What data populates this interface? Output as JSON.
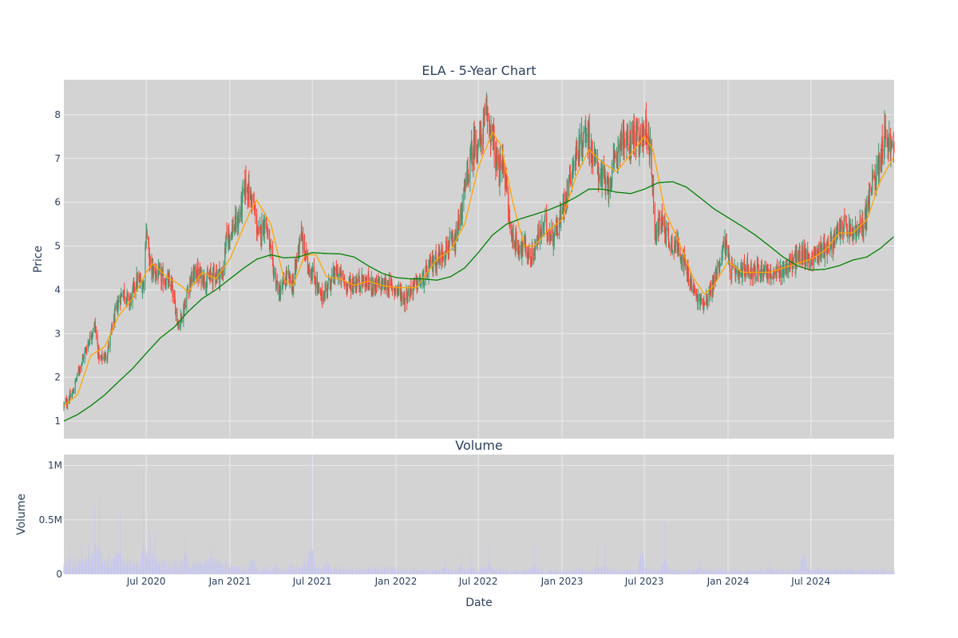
{
  "colors": {
    "background": "#d3d3d3",
    "paper": "#ffffff",
    "grid": "#ebebeb",
    "increasing": "#3d9970",
    "decreasing": "#ff4136",
    "ma_short": "#ffa500",
    "ma_long": "#008000",
    "volume": "#c7c7ee",
    "text": "#2a3f5f"
  },
  "chart_data": [
    {
      "type": "candlestick",
      "title": "ELA - 5-Year Chart",
      "xlabel": "",
      "ylabel": "Price",
      "xlim": [
        "2020-01-02",
        "2024-12-31"
      ],
      "ylim": [
        0.6,
        8.8
      ],
      "y_ticks": [
        1,
        2,
        3,
        4,
        5,
        6,
        7,
        8
      ],
      "grid": true,
      "legend": "none",
      "price_anchors": [
        [
          "2020-01-02",
          1.35
        ],
        [
          "2020-01-20",
          1.6
        ],
        [
          "2020-02-05",
          2.2
        ],
        [
          "2020-02-25",
          2.8
        ],
        [
          "2020-03-10",
          3.2
        ],
        [
          "2020-03-20",
          2.4
        ],
        [
          "2020-04-05",
          2.5
        ],
        [
          "2020-04-25",
          3.5
        ],
        [
          "2020-05-10",
          4.0
        ],
        [
          "2020-05-25",
          3.7
        ],
        [
          "2020-06-10",
          4.2
        ],
        [
          "2020-06-25",
          4.1
        ],
        [
          "2020-07-01",
          5.4
        ],
        [
          "2020-07-10",
          4.5
        ],
        [
          "2020-08-01",
          4.3
        ],
        [
          "2020-08-25",
          4.1
        ],
        [
          "2020-09-10",
          3.2
        ],
        [
          "2020-09-20",
          3.5
        ],
        [
          "2020-10-05",
          4.2
        ],
        [
          "2020-10-20",
          4.4
        ],
        [
          "2020-11-10",
          4.2
        ],
        [
          "2020-12-01",
          4.4
        ],
        [
          "2020-12-15",
          4.3
        ],
        [
          "2020-12-25",
          5.2
        ],
        [
          "2021-01-20",
          5.6
        ],
        [
          "2021-02-05",
          6.4
        ],
        [
          "2021-02-20",
          6.0
        ],
        [
          "2021-03-05",
          5.2
        ],
        [
          "2021-03-20",
          5.6
        ],
        [
          "2021-04-05",
          4.5
        ],
        [
          "2021-04-20",
          3.9
        ],
        [
          "2021-05-05",
          4.3
        ],
        [
          "2021-05-20",
          4.1
        ],
        [
          "2021-06-05",
          5.3
        ],
        [
          "2021-06-20",
          4.6
        ],
        [
          "2021-07-05",
          4.3
        ],
        [
          "2021-07-20",
          3.8
        ],
        [
          "2021-08-10",
          4.2
        ],
        [
          "2021-08-25",
          4.4
        ],
        [
          "2021-09-15",
          4.1
        ],
        [
          "2021-10-15",
          4.2
        ],
        [
          "2021-11-15",
          4.1
        ],
        [
          "2021-12-15",
          4.1
        ],
        [
          "2022-01-05",
          4.0
        ],
        [
          "2022-01-20",
          3.8
        ],
        [
          "2022-02-10",
          4.1
        ],
        [
          "2022-03-01",
          4.2
        ],
        [
          "2022-03-20",
          4.6
        ],
        [
          "2022-04-10",
          4.8
        ],
        [
          "2022-04-25",
          5.0
        ],
        [
          "2022-05-10",
          5.0
        ],
        [
          "2022-05-25",
          5.8
        ],
        [
          "2022-06-05",
          6.5
        ],
        [
          "2022-06-20",
          7.3
        ],
        [
          "2022-07-05",
          7.4
        ],
        [
          "2022-07-20",
          8.0
        ],
        [
          "2022-08-01",
          7.5
        ],
        [
          "2022-08-15",
          6.6
        ],
        [
          "2022-08-25",
          7.0
        ],
        [
          "2022-09-10",
          5.3
        ],
        [
          "2022-09-25",
          5.0
        ],
        [
          "2022-10-10",
          5.0
        ],
        [
          "2022-10-25",
          4.7
        ],
        [
          "2022-11-10",
          5.2
        ],
        [
          "2022-11-25",
          5.5
        ],
        [
          "2022-12-10",
          5.2
        ],
        [
          "2022-12-25",
          5.5
        ],
        [
          "2023-01-10",
          6.2
        ],
        [
          "2023-01-25",
          6.9
        ],
        [
          "2023-02-10",
          7.3
        ],
        [
          "2023-02-25",
          7.7
        ],
        [
          "2023-03-10",
          7.0
        ],
        [
          "2023-03-25",
          6.7
        ],
        [
          "2023-04-10",
          6.3
        ],
        [
          "2023-04-25",
          6.8
        ],
        [
          "2023-05-10",
          7.5
        ],
        [
          "2023-05-25",
          7.3
        ],
        [
          "2023-06-10",
          7.6
        ],
        [
          "2023-06-20",
          7.2
        ],
        [
          "2023-07-01",
          7.8
        ],
        [
          "2023-07-15",
          7.2
        ],
        [
          "2023-07-25",
          5.3
        ],
        [
          "2023-08-10",
          5.6
        ],
        [
          "2023-08-25",
          5.1
        ],
        [
          "2023-09-15",
          5.0
        ],
        [
          "2023-10-05",
          4.3
        ],
        [
          "2023-10-25",
          3.8
        ],
        [
          "2023-11-05",
          3.7
        ],
        [
          "2023-11-15",
          3.8
        ],
        [
          "2023-11-25",
          4.0
        ],
        [
          "2023-12-10",
          4.5
        ],
        [
          "2023-12-25",
          5.1
        ],
        [
          "2024-01-05",
          4.5
        ],
        [
          "2024-01-20",
          4.3
        ],
        [
          "2024-02-10",
          4.5
        ],
        [
          "2024-03-01",
          4.4
        ],
        [
          "2024-03-20",
          4.5
        ],
        [
          "2024-04-10",
          4.3
        ],
        [
          "2024-05-01",
          4.5
        ],
        [
          "2024-05-20",
          4.6
        ],
        [
          "2024-06-10",
          4.8
        ],
        [
          "2024-07-01",
          4.7
        ],
        [
          "2024-07-20",
          4.9
        ],
        [
          "2024-08-10",
          5.0
        ],
        [
          "2024-08-25",
          5.2
        ],
        [
          "2024-09-10",
          5.5
        ],
        [
          "2024-09-25",
          5.3
        ],
        [
          "2024-10-10",
          5.3
        ],
        [
          "2024-10-25",
          5.5
        ],
        [
          "2024-11-10",
          6.3
        ],
        [
          "2024-11-25",
          6.8
        ],
        [
          "2024-12-10",
          7.6
        ],
        [
          "2024-12-31",
          7.1
        ]
      ],
      "ma_short_anchors": [
        [
          "2020-01-02",
          1.35
        ],
        [
          "2020-02-01",
          1.6
        ],
        [
          "2020-03-01",
          2.5
        ],
        [
          "2020-04-01",
          2.7
        ],
        [
          "2020-05-01",
          3.4
        ],
        [
          "2020-06-01",
          3.8
        ],
        [
          "2020-07-01",
          4.4
        ],
        [
          "2020-07-15",
          4.6
        ],
        [
          "2020-08-15",
          4.3
        ],
        [
          "2020-09-15",
          4.1
        ],
        [
          "2020-10-01",
          3.95
        ],
        [
          "2020-11-01",
          4.4
        ],
        [
          "2020-12-01",
          4.25
        ],
        [
          "2021-01-01",
          4.7
        ],
        [
          "2021-02-15",
          5.8
        ],
        [
          "2021-03-01",
          6.05
        ],
        [
          "2021-04-01",
          5.5
        ],
        [
          "2021-05-01",
          4.2
        ],
        [
          "2021-05-20",
          4.1
        ],
        [
          "2021-06-15",
          4.8
        ],
        [
          "2021-07-10",
          4.8
        ],
        [
          "2021-08-01",
          4.3
        ],
        [
          "2021-09-01",
          4.25
        ],
        [
          "2021-10-01",
          4.1
        ],
        [
          "2021-11-01",
          4.2
        ],
        [
          "2021-12-01",
          4.1
        ],
        [
          "2022-01-01",
          4.05
        ],
        [
          "2022-02-15",
          4.05
        ],
        [
          "2022-04-01",
          4.7
        ],
        [
          "2022-05-01",
          4.9
        ],
        [
          "2022-06-01",
          5.5
        ],
        [
          "2022-07-01",
          6.8
        ],
        [
          "2022-08-01",
          7.6
        ],
        [
          "2022-08-20",
          7.3
        ],
        [
          "2022-09-15",
          6.0
        ],
        [
          "2022-10-10",
          5.0
        ],
        [
          "2022-11-01",
          5.0
        ],
        [
          "2022-12-01",
          5.35
        ],
        [
          "2023-01-01",
          5.6
        ],
        [
          "2023-02-01",
          6.6
        ],
        [
          "2023-03-01",
          7.2
        ],
        [
          "2023-04-01",
          6.9
        ],
        [
          "2023-05-01",
          6.7
        ],
        [
          "2023-06-01",
          7.1
        ],
        [
          "2023-07-01",
          7.5
        ],
        [
          "2023-07-20",
          7.2
        ],
        [
          "2023-08-15",
          5.8
        ],
        [
          "2023-09-15",
          5.1
        ],
        [
          "2023-10-15",
          4.3
        ],
        [
          "2023-11-10",
          3.9
        ],
        [
          "2023-12-01",
          4.1
        ],
        [
          "2024-01-01",
          4.65
        ],
        [
          "2024-02-01",
          4.4
        ],
        [
          "2024-03-01",
          4.4
        ],
        [
          "2024-04-01",
          4.4
        ],
        [
          "2024-05-01",
          4.5
        ],
        [
          "2024-06-01",
          4.6
        ],
        [
          "2024-07-01",
          4.7
        ],
        [
          "2024-08-01",
          4.9
        ],
        [
          "2024-09-01",
          5.3
        ],
        [
          "2024-10-01",
          5.3
        ],
        [
          "2024-11-01",
          5.6
        ],
        [
          "2024-12-01",
          6.5
        ],
        [
          "2024-12-31",
          7.05
        ]
      ],
      "ma_long_anchors": [
        [
          "2020-01-02",
          1.0
        ],
        [
          "2020-02-01",
          1.15
        ],
        [
          "2020-03-01",
          1.35
        ],
        [
          "2020-04-01",
          1.6
        ],
        [
          "2020-05-01",
          1.9
        ],
        [
          "2020-06-01",
          2.2
        ],
        [
          "2020-07-01",
          2.55
        ],
        [
          "2020-08-01",
          2.9
        ],
        [
          "2020-09-01",
          3.15
        ],
        [
          "2020-10-01",
          3.5
        ],
        [
          "2020-11-01",
          3.8
        ],
        [
          "2020-12-01",
          4.0
        ],
        [
          "2021-01-01",
          4.25
        ],
        [
          "2021-02-01",
          4.5
        ],
        [
          "2021-03-01",
          4.7
        ],
        [
          "2021-04-01",
          4.8
        ],
        [
          "2021-05-01",
          4.73
        ],
        [
          "2021-06-01",
          4.75
        ],
        [
          "2021-07-01",
          4.85
        ],
        [
          "2021-08-01",
          4.83
        ],
        [
          "2021-09-01",
          4.82
        ],
        [
          "2021-10-01",
          4.75
        ],
        [
          "2021-11-01",
          4.55
        ],
        [
          "2021-12-01",
          4.38
        ],
        [
          "2022-01-01",
          4.28
        ],
        [
          "2022-02-01",
          4.25
        ],
        [
          "2022-03-01",
          4.25
        ],
        [
          "2022-04-01",
          4.22
        ],
        [
          "2022-05-01",
          4.3
        ],
        [
          "2022-06-01",
          4.5
        ],
        [
          "2022-07-01",
          4.85
        ],
        [
          "2022-08-01",
          5.25
        ],
        [
          "2022-09-01",
          5.5
        ],
        [
          "2022-10-01",
          5.62
        ],
        [
          "2022-11-01",
          5.72
        ],
        [
          "2022-12-01",
          5.82
        ],
        [
          "2023-01-01",
          5.95
        ],
        [
          "2023-02-01",
          6.12
        ],
        [
          "2023-03-01",
          6.3
        ],
        [
          "2023-04-01",
          6.3
        ],
        [
          "2023-05-01",
          6.23
        ],
        [
          "2023-06-01",
          6.2
        ],
        [
          "2023-07-01",
          6.3
        ],
        [
          "2023-08-01",
          6.45
        ],
        [
          "2023-09-01",
          6.47
        ],
        [
          "2023-10-01",
          6.35
        ],
        [
          "2023-11-01",
          6.1
        ],
        [
          "2023-12-01",
          5.85
        ],
        [
          "2024-01-01",
          5.65
        ],
        [
          "2024-02-01",
          5.45
        ],
        [
          "2024-03-01",
          5.25
        ],
        [
          "2024-04-01",
          5.0
        ],
        [
          "2024-05-01",
          4.75
        ],
        [
          "2024-06-01",
          4.55
        ],
        [
          "2024-07-01",
          4.45
        ],
        [
          "2024-08-01",
          4.47
        ],
        [
          "2024-09-01",
          4.55
        ],
        [
          "2024-10-01",
          4.68
        ],
        [
          "2024-11-01",
          4.75
        ],
        [
          "2024-12-01",
          4.95
        ],
        [
          "2024-12-31",
          5.22
        ]
      ]
    },
    {
      "type": "bar",
      "title": "Volume",
      "xlabel": "Date",
      "ylabel": "Volume",
      "xlim": [
        "2020-01-02",
        "2024-12-31"
      ],
      "ylim": [
        0,
        1100000
      ],
      "y_ticks": [
        0,
        500000,
        1000000
      ],
      "y_tick_labels": [
        "0",
        "0.5M",
        "1M"
      ],
      "x_ticks": [
        "2020-07-01",
        "2021-01-01",
        "2021-07-01",
        "2022-01-01",
        "2022-07-01",
        "2023-01-01",
        "2023-07-01",
        "2024-01-01",
        "2024-07-01"
      ],
      "x_tick_labels": [
        "Jul 2020",
        "Jan 2021",
        "Jul 2021",
        "Jan 2022",
        "Jul 2022",
        "Jan 2023",
        "Jul 2023",
        "Jan 2024",
        "Jul 2024"
      ],
      "grid": true,
      "volume_spikes": [
        [
          "2020-01-15",
          250000
        ],
        [
          "2020-02-10",
          280000
        ],
        [
          "2020-02-25",
          300000
        ],
        [
          "2020-03-10",
          620000
        ],
        [
          "2020-03-20",
          700000
        ],
        [
          "2020-04-10",
          200000
        ],
        [
          "2020-04-25",
          650000
        ],
        [
          "2020-05-05",
          560000
        ],
        [
          "2020-05-20",
          150000
        ],
        [
          "2020-06-25",
          960000
        ],
        [
          "2020-07-10",
          380000
        ],
        [
          "2020-07-20",
          330000
        ],
        [
          "2020-09-25",
          350000
        ],
        [
          "2020-10-25",
          180000
        ],
        [
          "2020-11-20",
          230000
        ],
        [
          "2020-12-05",
          200000
        ],
        [
          "2021-01-10",
          180000
        ],
        [
          "2021-02-20",
          480000
        ],
        [
          "2021-04-10",
          160000
        ],
        [
          "2021-05-15",
          170000
        ],
        [
          "2021-06-15",
          180000
        ],
        [
          "2021-06-28",
          1080000
        ],
        [
          "2021-08-01",
          240000
        ],
        [
          "2022-04-20",
          150000
        ],
        [
          "2022-05-25",
          160000
        ],
        [
          "2022-06-15",
          160000
        ],
        [
          "2022-07-10",
          210000
        ],
        [
          "2022-07-25",
          280000
        ],
        [
          "2022-11-01",
          240000
        ],
        [
          "2023-03-20",
          250000
        ],
        [
          "2023-04-05",
          270000
        ],
        [
          "2023-06-25",
          870000
        ],
        [
          "2023-08-15",
          470000
        ],
        [
          "2023-11-01",
          120000
        ],
        [
          "2024-04-01",
          120000
        ],
        [
          "2024-06-15",
          800000
        ],
        [
          "2024-07-15",
          80000
        ]
      ]
    }
  ]
}
